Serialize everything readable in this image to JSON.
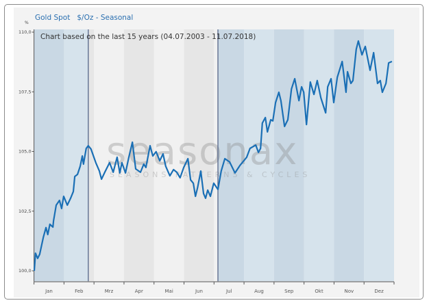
{
  "header": {
    "title": "Gold Spot   $/Oz - Seasonal",
    "unit": "%"
  },
  "watermark": {
    "brand": "seasonax",
    "tagline": "SEASONS PATTERNS & CYCLES"
  },
  "colors": {
    "line": "#1a6fb5",
    "shade_blue_dark": "#c9d8e4",
    "shade_blue_light": "#d6e3ec",
    "shade_grey_dark": "#e6e6e6",
    "shade_grey_light": "#f1f1f1",
    "marker": "#4a5a80"
  },
  "chart_data": {
    "type": "line",
    "annotation": "Chart based on the last 15 years (04.07.2003 - 11.07.2018)",
    "ylabel": "%",
    "ylim": [
      100,
      110
    ],
    "yticks": [
      "100,0",
      "102,5",
      "105,0",
      "107,5",
      "110,0"
    ],
    "ytick_values": [
      100,
      102.5,
      105,
      107.5,
      110
    ],
    "categories": [
      "Jan",
      "Feb",
      "Mrz",
      "Apr",
      "Mai",
      "Jun",
      "Jul",
      "Aug",
      "Sep",
      "Okt",
      "Nov",
      "Dez"
    ],
    "markers_month_position": [
      1.81,
      6.13
    ],
    "series": [
      {
        "points": [
          [
            0.01,
            100.0
          ],
          [
            0.05,
            100.74
          ],
          [
            0.12,
            100.52
          ],
          [
            0.19,
            100.69
          ],
          [
            0.31,
            101.4
          ],
          [
            0.4,
            101.81
          ],
          [
            0.46,
            101.52
          ],
          [
            0.53,
            101.95
          ],
          [
            0.63,
            101.83
          ],
          [
            0.65,
            102.09
          ],
          [
            0.74,
            102.75
          ],
          [
            0.85,
            102.95
          ],
          [
            0.92,
            102.61
          ],
          [
            0.99,
            103.12
          ],
          [
            1.11,
            102.75
          ],
          [
            1.22,
            103.04
          ],
          [
            1.31,
            103.32
          ],
          [
            1.36,
            103.95
          ],
          [
            1.45,
            104.04
          ],
          [
            1.54,
            104.38
          ],
          [
            1.61,
            104.81
          ],
          [
            1.65,
            104.47
          ],
          [
            1.74,
            105.13
          ],
          [
            1.81,
            105.24
          ],
          [
            1.9,
            105.1
          ],
          [
            2.06,
            104.53
          ],
          [
            2.18,
            104.18
          ],
          [
            2.25,
            103.84
          ],
          [
            2.36,
            104.13
          ],
          [
            2.52,
            104.53
          ],
          [
            2.64,
            104.13
          ],
          [
            2.77,
            104.76
          ],
          [
            2.86,
            104.1
          ],
          [
            2.93,
            104.53
          ],
          [
            3.05,
            104.1
          ],
          [
            3.16,
            104.76
          ],
          [
            3.28,
            105.39
          ],
          [
            3.39,
            104.27
          ],
          [
            3.55,
            104.13
          ],
          [
            3.66,
            104.47
          ],
          [
            3.73,
            104.33
          ],
          [
            3.87,
            105.24
          ],
          [
            3.96,
            104.81
          ],
          [
            4.07,
            104.99
          ],
          [
            4.19,
            104.61
          ],
          [
            4.3,
            104.9
          ],
          [
            4.39,
            104.38
          ],
          [
            4.53,
            103.98
          ],
          [
            4.65,
            104.24
          ],
          [
            4.76,
            104.13
          ],
          [
            4.87,
            103.9
          ],
          [
            4.99,
            104.33
          ],
          [
            5.13,
            104.7
          ],
          [
            5.22,
            103.81
          ],
          [
            5.31,
            103.67
          ],
          [
            5.38,
            103.12
          ],
          [
            5.45,
            103.47
          ],
          [
            5.56,
            104.18
          ],
          [
            5.65,
            103.24
          ],
          [
            5.72,
            103.04
          ],
          [
            5.79,
            103.38
          ],
          [
            5.88,
            103.12
          ],
          [
            5.99,
            103.67
          ],
          [
            6.13,
            103.41
          ],
          [
            6.24,
            104.18
          ],
          [
            6.36,
            104.7
          ],
          [
            6.52,
            104.56
          ],
          [
            6.7,
            104.1
          ],
          [
            6.86,
            104.41
          ],
          [
            7.09,
            104.76
          ],
          [
            7.2,
            105.13
          ],
          [
            7.39,
            105.27
          ],
          [
            7.48,
            104.96
          ],
          [
            7.55,
            105.13
          ],
          [
            7.61,
            106.19
          ],
          [
            7.71,
            106.42
          ],
          [
            7.78,
            105.82
          ],
          [
            7.89,
            106.33
          ],
          [
            7.96,
            106.28
          ],
          [
            8.05,
            107.05
          ],
          [
            8.16,
            107.48
          ],
          [
            8.23,
            107.13
          ],
          [
            8.35,
            106.05
          ],
          [
            8.46,
            106.33
          ],
          [
            8.58,
            107.62
          ],
          [
            8.69,
            108.05
          ],
          [
            8.83,
            107.13
          ],
          [
            8.92,
            107.71
          ],
          [
            8.99,
            107.48
          ],
          [
            9.08,
            106.13
          ],
          [
            9.21,
            107.91
          ],
          [
            9.33,
            107.39
          ],
          [
            9.44,
            107.97
          ],
          [
            9.56,
            107.25
          ],
          [
            9.72,
            106.62
          ],
          [
            9.79,
            107.71
          ],
          [
            9.9,
            108.05
          ],
          [
            9.99,
            107.05
          ],
          [
            10.11,
            108.11
          ],
          [
            10.27,
            108.77
          ],
          [
            10.4,
            107.48
          ],
          [
            10.45,
            108.34
          ],
          [
            10.56,
            107.85
          ],
          [
            10.63,
            107.97
          ],
          [
            10.74,
            109.28
          ],
          [
            10.81,
            109.63
          ],
          [
            10.93,
            109.05
          ],
          [
            11.04,
            109.4
          ],
          [
            11.2,
            108.4
          ],
          [
            11.32,
            109.14
          ],
          [
            11.45,
            107.85
          ],
          [
            11.54,
            107.97
          ],
          [
            11.61,
            107.48
          ],
          [
            11.73,
            107.85
          ],
          [
            11.82,
            108.71
          ],
          [
            11.93,
            108.77
          ]
        ]
      }
    ]
  }
}
